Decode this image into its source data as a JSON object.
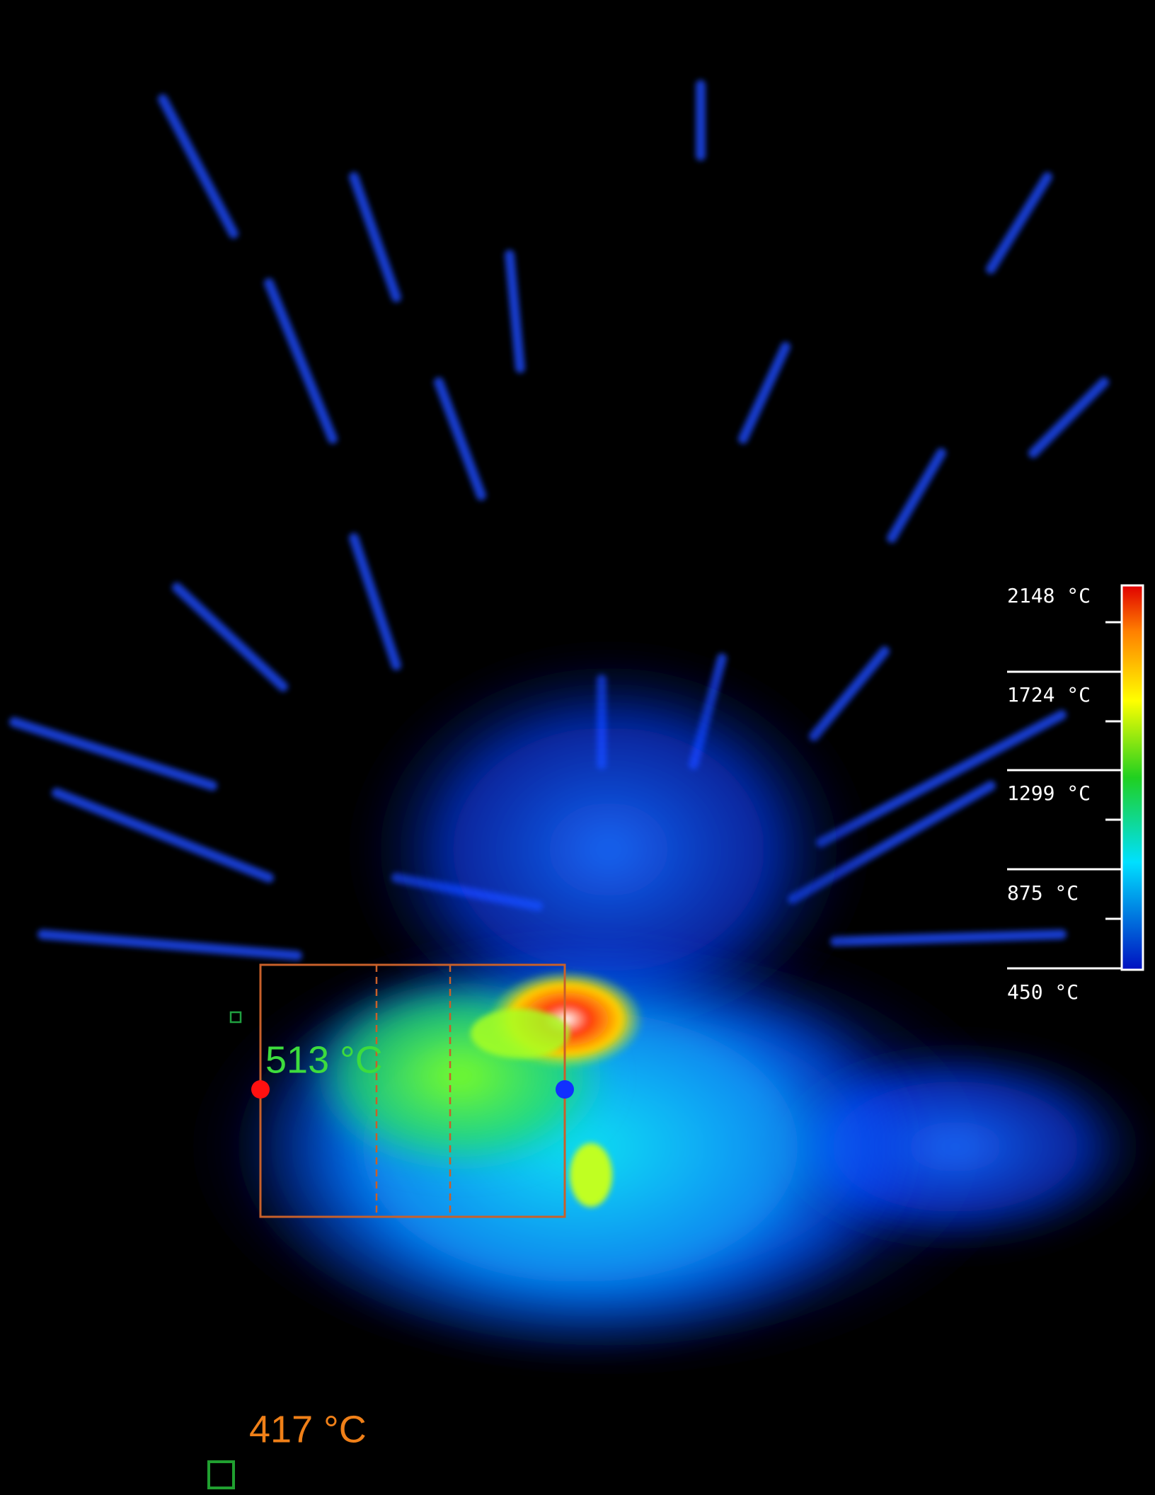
{
  "scale": {
    "labels": [
      "2148 °C",
      "1724 °C",
      "1299 °C",
      "875 °C",
      "450 °C"
    ]
  },
  "readouts": {
    "spot": "513 °C",
    "area": "417 °C"
  }
}
